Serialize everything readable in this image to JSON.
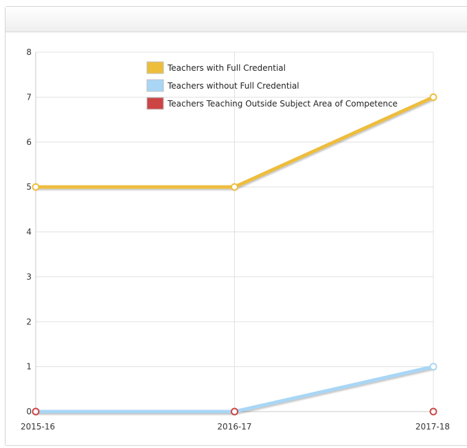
{
  "chart_data": {
    "type": "line",
    "title": "",
    "xlabel": "",
    "ylabel": "",
    "categories": [
      "2015-16",
      "2016-17",
      "2017-18"
    ],
    "ylim": [
      0,
      8
    ],
    "yticks": [
      0,
      1,
      2,
      3,
      4,
      5,
      6,
      7,
      8
    ],
    "grid": true,
    "legend_position": "top",
    "series": [
      {
        "name": "Teachers with Full Credential",
        "values": [
          5,
          5,
          7
        ],
        "color": "#edbd3c"
      },
      {
        "name": "Teachers without Full Credential",
        "values": [
          0,
          0,
          1
        ],
        "color": "#a9d6f5"
      },
      {
        "name": "Teachers Teaching Outside Subject Area of Competence",
        "values": [
          0,
          0,
          0
        ],
        "color": "#cc4444"
      }
    ]
  }
}
